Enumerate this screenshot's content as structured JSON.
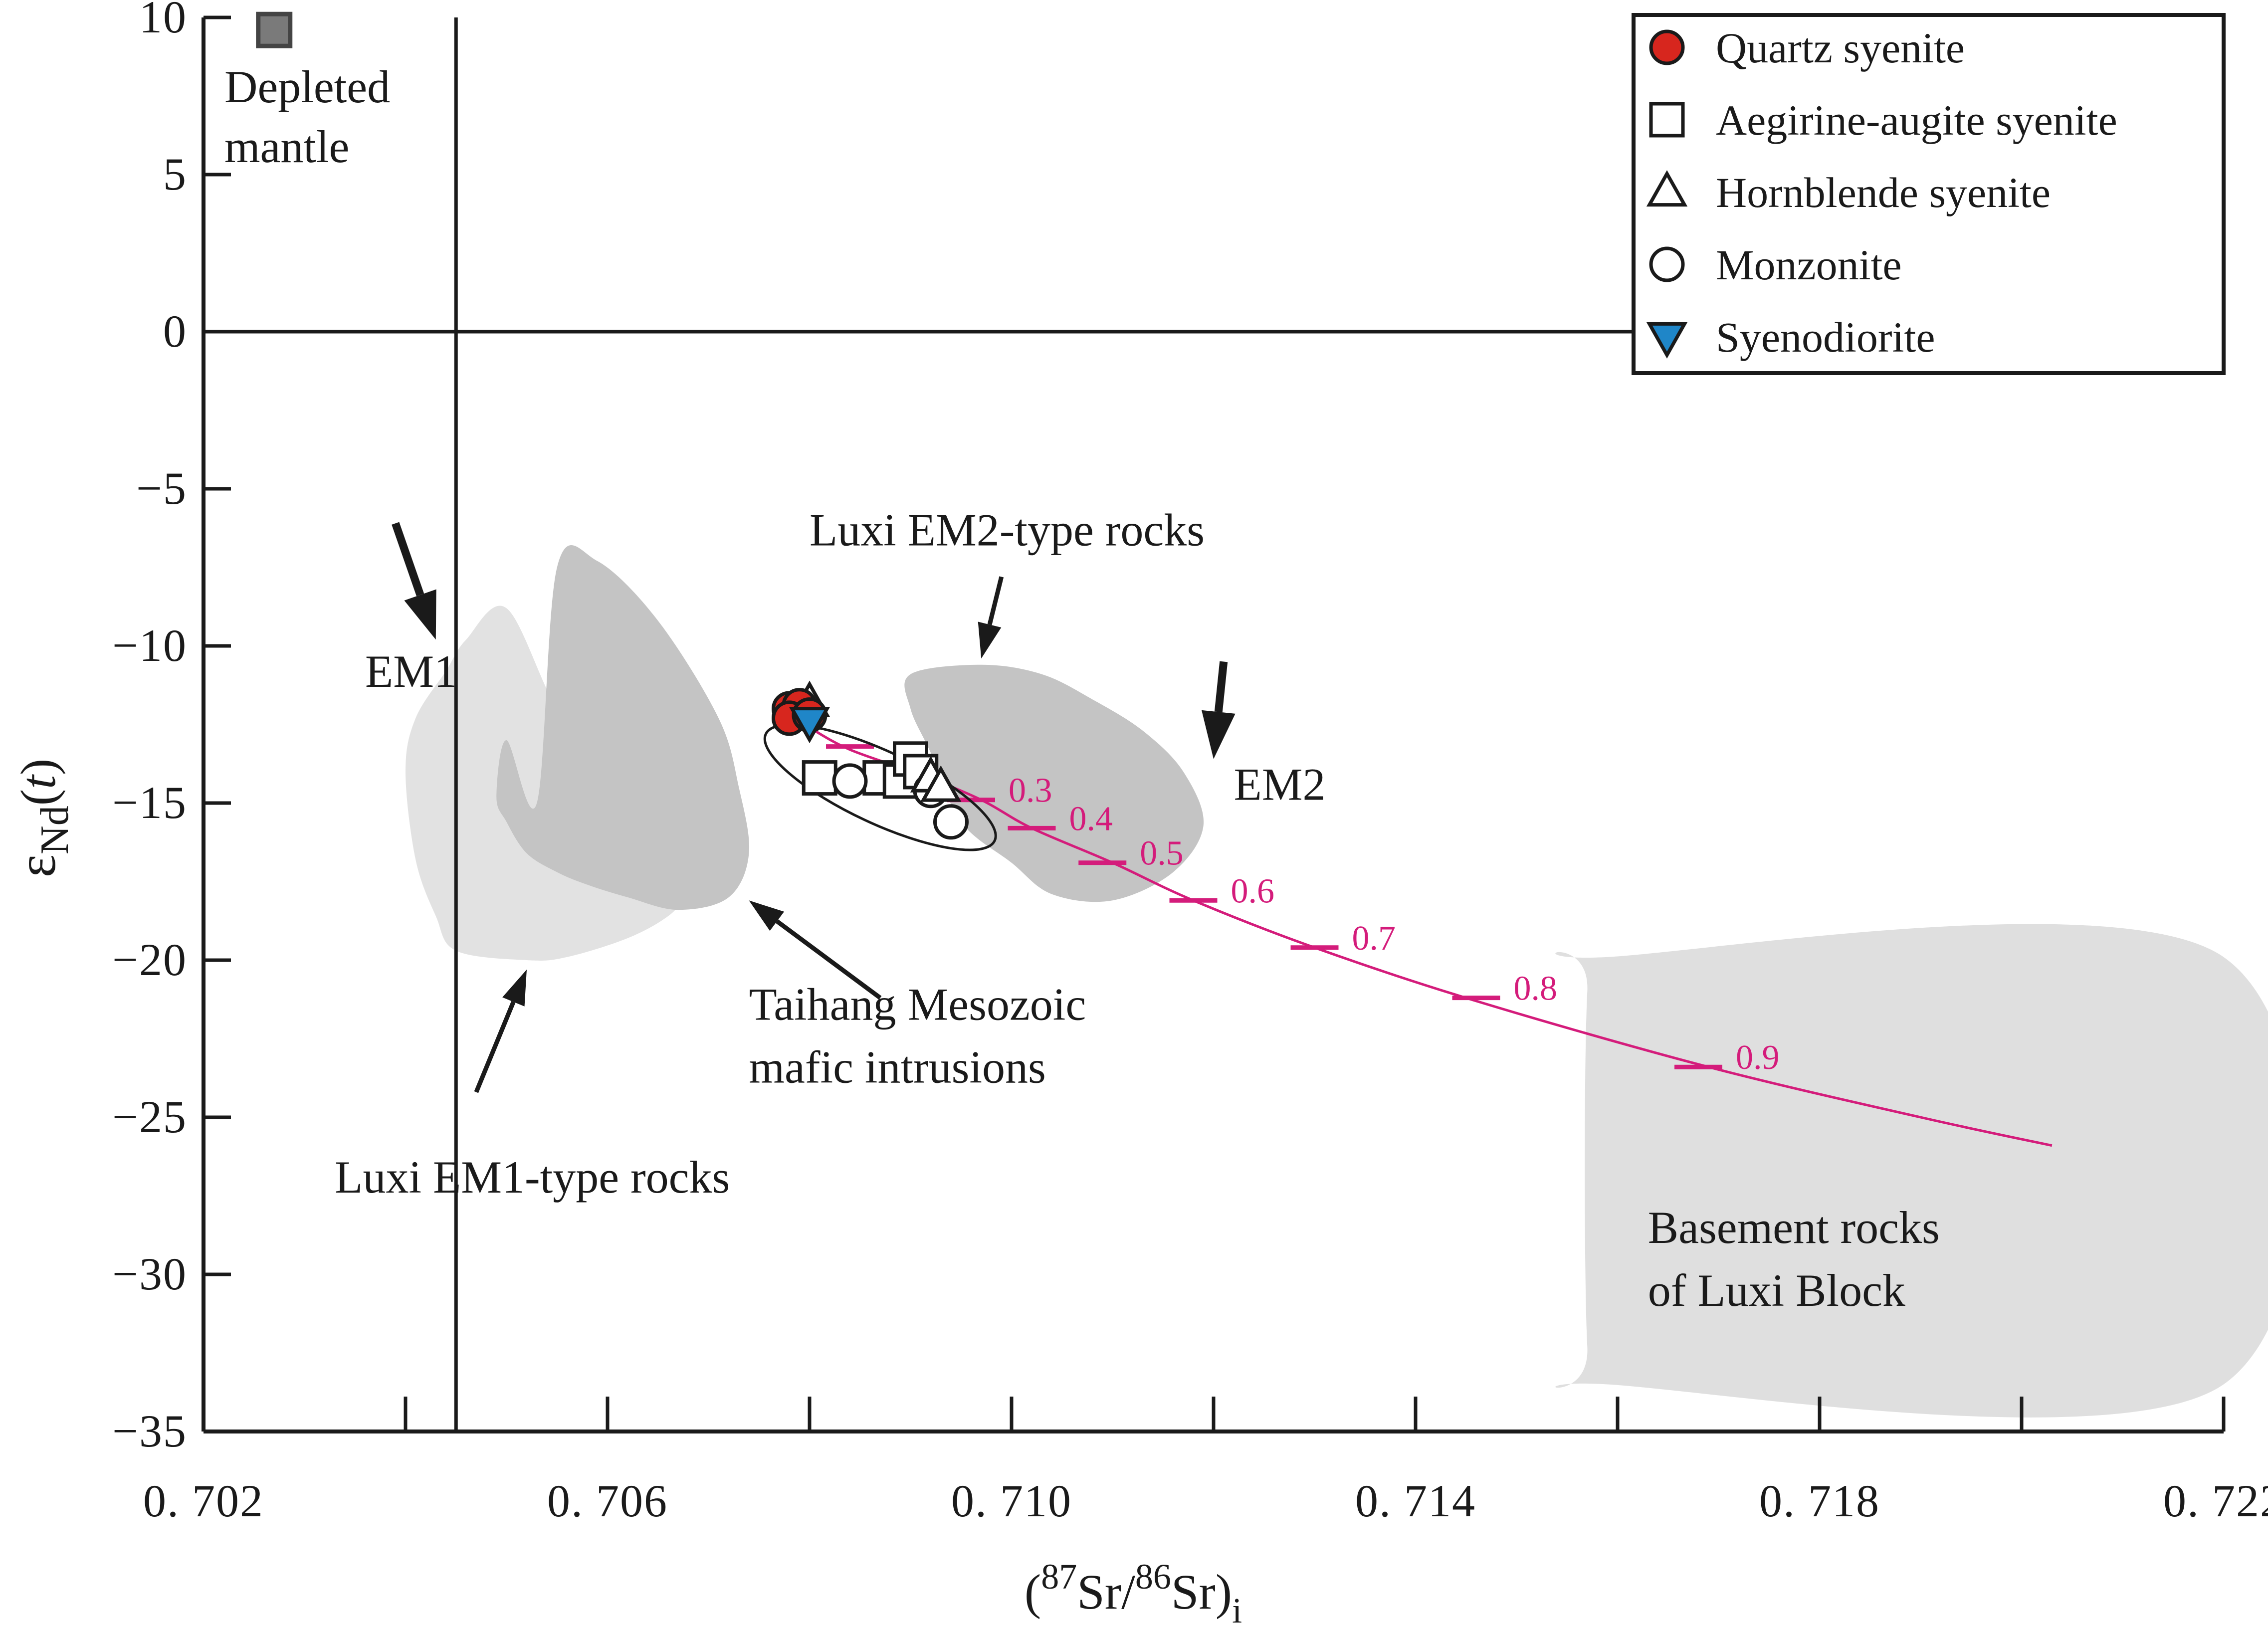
{
  "chart_data": {
    "type": "scatter",
    "xlabel": {
      "open": "(",
      "sup1": "87",
      "mid": "Sr/",
      "sup2": "86",
      "end": "Sr)",
      "sub": "i"
    },
    "ylabel": {
      "symbol": "ε",
      "sub": "Nd",
      "arg_open": "(",
      "arg": "t",
      "arg_close": ")"
    },
    "xlim": [
      0.702,
      0.722
    ],
    "ylim": [
      -35,
      10
    ],
    "x_ticks": [
      0.702,
      0.706,
      0.71,
      0.714,
      0.718,
      0.722
    ],
    "x_tick_labels": [
      "0. 702",
      "0. 706",
      "0. 710",
      "0. 714",
      "0. 718",
      "0. 722"
    ],
    "x_minor_ticks": [
      0.704,
      0.708,
      0.712,
      0.716,
      0.72
    ],
    "y_ticks": [
      10,
      5,
      0,
      -5,
      -10,
      -15,
      -20,
      -25,
      -30,
      -35
    ],
    "y_tick_labels": [
      "10",
      "5",
      "0",
      "−5",
      "−10",
      "−15",
      "−20",
      "−25",
      "−30",
      "−35"
    ],
    "reference_lines": {
      "epsilon_nd_zero": 0,
      "bulk_earth_sr": 0.7045
    },
    "legend": {
      "placement": "top-right",
      "entries": [
        {
          "label": "Quartz  syenite",
          "marker": "circle",
          "fill": "#d7261e"
        },
        {
          "label": "Aegirine-augite syenite",
          "marker": "square",
          "fill": "none"
        },
        {
          "label": "Hornblende syenite",
          "marker": "triangle",
          "fill": "none"
        },
        {
          "label": "Monzonite",
          "marker": "circle",
          "fill": "none"
        },
        {
          "label": "Syenodiorite",
          "marker": "triangle-down",
          "fill": "#1f86c8"
        }
      ]
    },
    "series": [
      {
        "name": "Quartz  syenite",
        "marker": "circle",
        "color": "#d7261e",
        "x": [
          0.7078,
          0.7079,
          0.7078,
          0.708
        ],
        "y": [
          -12.0,
          -11.9,
          -12.3,
          -12.2
        ]
      },
      {
        "name": "Aegirine-augite syenite",
        "marker": "square",
        "color": "#ffffff",
        "x": [
          0.7081,
          0.7087,
          0.7089,
          0.709,
          0.7091
        ],
        "y": [
          -14.2,
          -14.2,
          -14.3,
          -13.6,
          -14.0
        ]
      },
      {
        "name": "Hornblende syenite",
        "marker": "triangle",
        "color": "#ffffff",
        "x": [
          0.708,
          0.7092,
          0.7093
        ],
        "y": [
          -11.8,
          -14.2,
          -14.5
        ]
      },
      {
        "name": "Monzonite",
        "marker": "circle",
        "color": "#ffffff",
        "x": [
          0.7084,
          0.7092,
          0.7094
        ],
        "y": [
          -14.3,
          -14.6,
          -15.6
        ]
      },
      {
        "name": "Syenodiorite",
        "marker": "triangle-down",
        "color": "#1f86c8",
        "x": [
          0.708
        ],
        "y": [
          -12.4
        ]
      }
    ],
    "depleted_mantle": {
      "x": 0.7027,
      "y": 9.6,
      "label_lines": [
        "Depleted",
        "mantle"
      ],
      "color": "#7a7a7a"
    },
    "fields": [
      {
        "name": "luxi-em1",
        "color": "#e2e2e2",
        "x": [
          0.7045,
          0.7052,
          0.7056,
          0.7062,
          0.7066,
          0.7068,
          0.7069,
          0.7068,
          0.7064,
          0.706,
          0.7055,
          0.705,
          0.7046,
          0.7044,
          0.7041,
          0.704,
          0.7041,
          0.7043
        ],
        "y": [
          -19.7,
          -20.0,
          -19.9,
          -19.3,
          -18.6,
          -17.9,
          -17.6,
          -17.2,
          -15.5,
          -13.8,
          -12.0,
          -8.8,
          -9.8,
          -10.8,
          -12.3,
          -14.0,
          -16.8,
          -18.6
        ]
      },
      {
        "name": "taihang",
        "color": "#c4c4c4",
        "x": [
          0.7053,
          0.7055,
          0.7059,
          0.7065,
          0.7071,
          0.7073,
          0.7074,
          0.7072,
          0.7067,
          0.7062,
          0.7058,
          0.7055,
          0.7052,
          0.705,
          0.7049,
          0.705
        ],
        "y": [
          -15.0,
          -7.5,
          -7.3,
          -9.2,
          -12.3,
          -14.5,
          -16.6,
          -18.0,
          -18.4,
          -18.0,
          -17.6,
          -17.2,
          -16.6,
          -15.6,
          -14.8,
          -13.0
        ]
      },
      {
        "name": "luxi-em2",
        "color": "#c4c4c4",
        "x": [
          0.7097,
          0.7103,
          0.7108,
          0.7113,
          0.7117,
          0.7119,
          0.7116,
          0.711,
          0.7104,
          0.71,
          0.7095,
          0.7092,
          0.709,
          0.709
        ],
        "y": [
          -10.6,
          -10.9,
          -11.7,
          -12.7,
          -14.0,
          -15.7,
          -17.2,
          -18.1,
          -17.9,
          -16.9,
          -15.6,
          -13.4,
          -12.0,
          -10.9
        ]
      },
      {
        "name": "basement",
        "color": "#dfdfdf",
        "x": [
          0.7159,
          0.722,
          0.722,
          0.7159,
          0.7157,
          0.7157
        ],
        "y": [
          -19.9,
          -19.9,
          -33.5,
          -33.5,
          -32.3,
          -21.0
        ]
      }
    ],
    "sample_ellipse": {
      "cx": 0.7087,
      "cy": -14.5,
      "rx": 0.00125,
      "ry": 1.15,
      "tilt_deg": 25
    },
    "mixing_curve": {
      "color": "#d41c7b",
      "x": [
        0.708,
        0.7084,
        0.7091,
        0.7097,
        0.7102,
        0.711,
        0.7118,
        0.713,
        0.7146,
        0.7169,
        0.719,
        0.7203
      ],
      "y": [
        -12.6,
        -13.3,
        -14.1,
        -14.9,
        -15.8,
        -16.9,
        -18.1,
        -19.6,
        -21.3,
        -23.4,
        -25.0,
        -25.9
      ],
      "ticks": [
        {
          "x": 0.7084,
          "y": -13.2,
          "label": ""
        },
        {
          "x": 0.709,
          "y": -14.0,
          "label": ""
        },
        {
          "x": 0.7096,
          "y": -14.9,
          "label": "0.3"
        },
        {
          "x": 0.7102,
          "y": -15.8,
          "label": "0.4"
        },
        {
          "x": 0.7109,
          "y": -16.9,
          "label": "0.5"
        },
        {
          "x": 0.7118,
          "y": -18.1,
          "label": "0.6"
        },
        {
          "x": 0.713,
          "y": -19.6,
          "label": "0.7"
        },
        {
          "x": 0.7146,
          "y": -21.2,
          "label": "0.8"
        },
        {
          "x": 0.7168,
          "y": -23.4,
          "label": "0.9"
        }
      ]
    },
    "annotations": [
      {
        "text": "EM1",
        "x": 0.7036,
        "y": -11.3
      },
      {
        "text": "EM2",
        "x": 0.7122,
        "y": -14.9
      },
      {
        "text": "Luxi EM2-type rocks",
        "x": 0.708,
        "y": -6.8
      },
      {
        "text": "Taihang  Mesozoic",
        "x": 0.7074,
        "y": -21.9
      },
      {
        "text": "mafic  intrusions",
        "x": 0.7074,
        "y": -23.9
      },
      {
        "text": "Luxi EM1-type rocks",
        "x": 0.7033,
        "y": -27.4
      },
      {
        "text": "Basement rocks",
        "x": 0.7163,
        "y": -29.0
      },
      {
        "text": "of Luxi Block",
        "x": 0.7163,
        "y": -31.0
      }
    ],
    "arrows": [
      {
        "x1": 0.7039,
        "y1": -6.1,
        "x2": 0.7043,
        "y2": -9.8,
        "weight": "bold"
      },
      {
        "x1": 0.7121,
        "y1": -10.5,
        "x2": 0.712,
        "y2": -13.6,
        "weight": "bold"
      },
      {
        "x1": 0.7099,
        "y1": -7.8,
        "x2": 0.7097,
        "y2": -10.4,
        "weight": "normal"
      },
      {
        "x1": 0.7087,
        "y1": -21.2,
        "x2": 0.7074,
        "y2": -18.1,
        "weight": "normal"
      },
      {
        "x1": 0.7047,
        "y1": -24.2,
        "x2": 0.7052,
        "y2": -20.3,
        "weight": "normal"
      }
    ]
  }
}
